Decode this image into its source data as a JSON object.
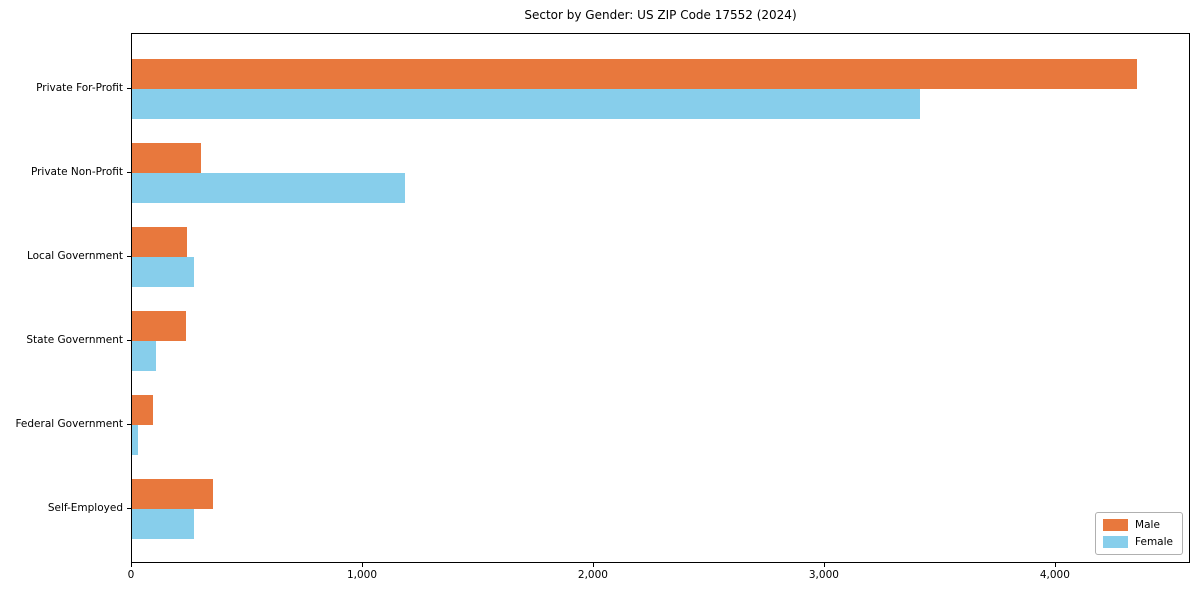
{
  "title": "Sector by Gender: US ZIP Code 17552 (2024)",
  "chart_data": {
    "type": "bar",
    "orientation": "horizontal",
    "title": "Sector by Gender: US ZIP Code 17552 (2024)",
    "categories": [
      "Private For-Profit",
      "Private Non-Profit",
      "Local Government",
      "State Government",
      "Federal Government",
      "Self-Employed"
    ],
    "series": [
      {
        "name": "Male",
        "color": "#e8783d",
        "values": [
          4350,
          300,
          240,
          235,
          90,
          350
        ]
      },
      {
        "name": "Female",
        "color": "#87ceeb",
        "values": [
          3410,
          1180,
          270,
          105,
          25,
          270
        ]
      }
    ],
    "xlabel": "",
    "ylabel": "",
    "xlim": [
      0,
      4585
    ],
    "x_ticks": [
      0,
      1000,
      2000,
      3000,
      4000
    ],
    "x_tick_labels": [
      "0",
      "1,000",
      "2,000",
      "3,000",
      "4,000"
    ],
    "grid": false,
    "legend_position": "lower right",
    "plot_background": "#ffffff",
    "spine_color": "#000000"
  },
  "legend": {
    "items": [
      {
        "label": "Male",
        "color": "#e8783d"
      },
      {
        "label": "Female",
        "color": "#87ceeb"
      }
    ]
  }
}
